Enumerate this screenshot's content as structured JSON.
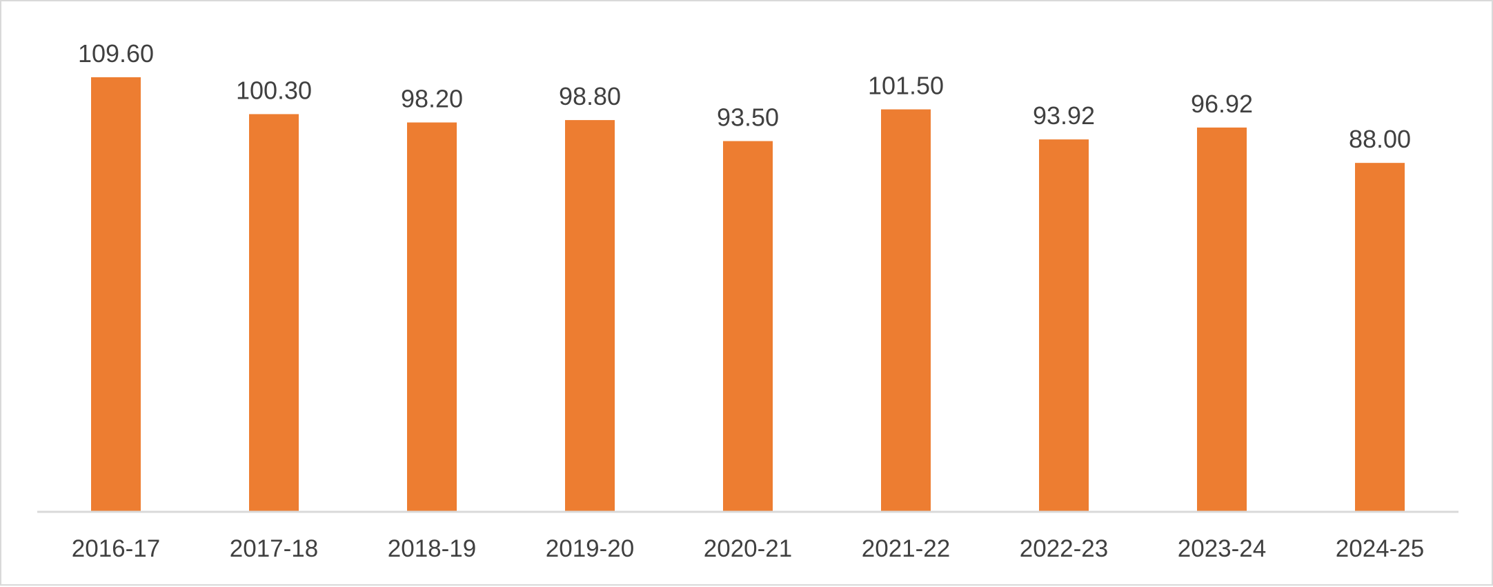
{
  "chart_data": {
    "type": "bar",
    "title": "",
    "xlabel": "",
    "ylabel": "",
    "categories": [
      "2016-17",
      "2017-18",
      "2018-19",
      "2019-20",
      "2020-21",
      "2021-22",
      "2022-23",
      "2023-24",
      "2024-25"
    ],
    "values": [
      109.6,
      100.3,
      98.2,
      98.8,
      93.5,
      101.5,
      93.92,
      96.92,
      88.0
    ],
    "value_labels": [
      "109.60",
      "100.30",
      "98.20",
      "98.80",
      "93.50",
      "101.50",
      "93.92",
      "96.92",
      "88.00"
    ],
    "ylim": [
      0,
      109.6
    ],
    "grid": false,
    "legend": "none",
    "bar_color": "#ED7D31",
    "axis_color": "#D9D9D9",
    "label_color": "#404040"
  }
}
